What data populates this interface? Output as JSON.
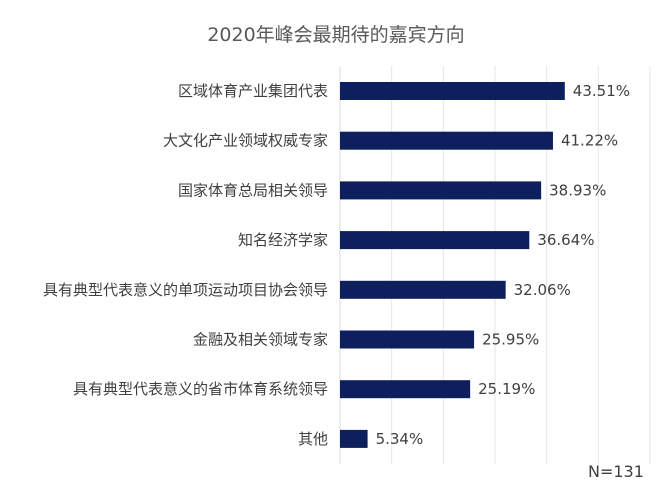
{
  "chart_data": {
    "type": "bar",
    "orientation": "horizontal",
    "title": "2020年峰会最期待的嘉宾方向",
    "categories": [
      "区域体育产业集团代表",
      "大文化产业领域权威专家",
      "国家体育总局相关领导",
      "知名经济学家",
      "具有典型代表意义的单项运动项目协会领导",
      "金融及相关领域专家",
      "具有典型代表意义的省市体育系统领导",
      "其他"
    ],
    "values": [
      43.51,
      41.22,
      38.93,
      36.64,
      32.06,
      25.95,
      25.19,
      5.34
    ],
    "value_labels": [
      "43.51%",
      "41.22%",
      "38.93%",
      "36.64%",
      "32.06%",
      "25.95%",
      "25.19%",
      "5.34%"
    ],
    "xlim": [
      0,
      60
    ],
    "grid": true,
    "bar_color": "#0d1f5c",
    "xlabel": "",
    "ylabel": ""
  },
  "footnote": "N=131"
}
